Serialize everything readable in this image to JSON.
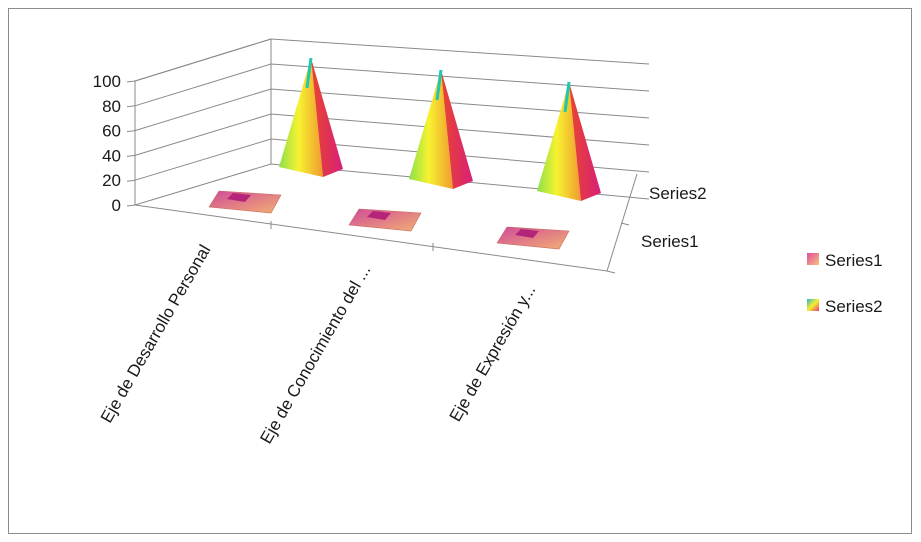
{
  "chart_data": {
    "type": "bar",
    "variant": "3d-pyramid",
    "categories": [
      "Eje de Desarrollo Personal",
      "Eje de Conocimiento del ...",
      "Eje de Expresión y..."
    ],
    "series": [
      {
        "name": "Series1",
        "values": [
          2,
          2,
          2
        ]
      },
      {
        "name": "Series2",
        "values": [
          100,
          100,
          100
        ]
      }
    ],
    "y_ticks": [
      "0",
      "20",
      "40",
      "60",
      "80",
      "100"
    ],
    "ylim": [
      0,
      100
    ],
    "title": "",
    "xlabel": "",
    "ylabel": "",
    "grid": true,
    "legend": "right",
    "colors": {
      "series1": [
        "#e04e9b",
        "#f0b57a"
      ],
      "series2": [
        "#27c7a0",
        "#f5f22c",
        "#e83a6f"
      ]
    }
  }
}
